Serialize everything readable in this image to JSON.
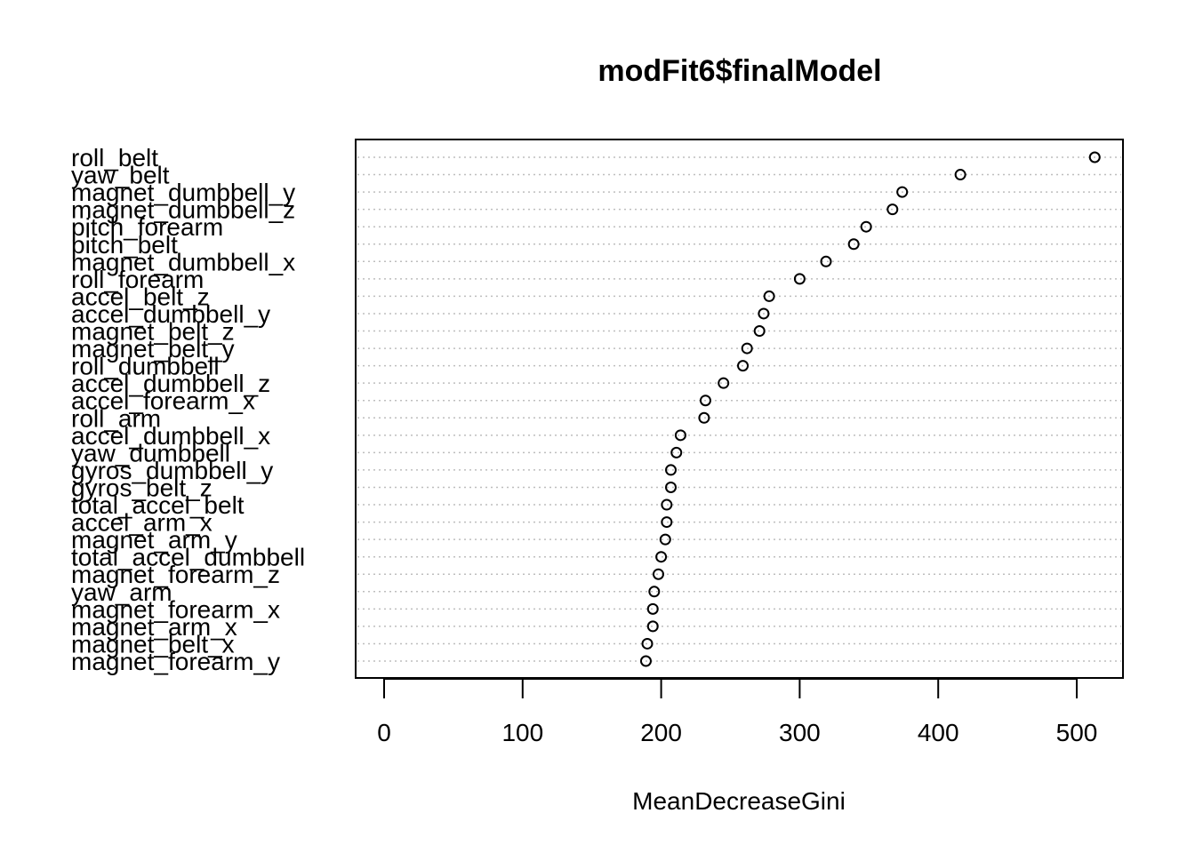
{
  "chart_data": {
    "type": "scatter",
    "title": "modFit6$finalModel",
    "xlabel": "MeanDecreaseGini",
    "ylabel": "",
    "xlim": [
      -20,
      533
    ],
    "xticks": [
      0,
      100,
      200,
      300,
      400,
      500
    ],
    "grid": "dotted horizontal guide lines per row",
    "categories": [
      "roll_belt",
      "yaw_belt",
      "magnet_dumbbell_y",
      "magnet_dumbbell_z",
      "pitch_forearm",
      "pitch_belt",
      "magnet_dumbbell_x",
      "roll_forearm",
      "accel_belt_z",
      "accel_dumbbell_y",
      "magnet_belt_z",
      "magnet_belt_y",
      "roll_dumbbell",
      "accel_dumbbell_z",
      "accel_forearm_x",
      "roll_arm",
      "accel_dumbbell_x",
      "yaw_dumbbell",
      "gyros_dumbbell_y",
      "gyros_belt_z",
      "total_accel_belt",
      "accel_arm_x",
      "magnet_arm_y",
      "total_accel_dumbbell",
      "magnet_forearm_z",
      "yaw_arm",
      "magnet_forearm_x",
      "magnet_arm_x",
      "magnet_belt_x",
      "magnet_forearm_y"
    ],
    "values": [
      513,
      416,
      374,
      367,
      348,
      339,
      319,
      300,
      278,
      274,
      271,
      262,
      259,
      245,
      232,
      231,
      214,
      211,
      207,
      207,
      204,
      204,
      203,
      200,
      198,
      195,
      194,
      194,
      190,
      189
    ]
  }
}
